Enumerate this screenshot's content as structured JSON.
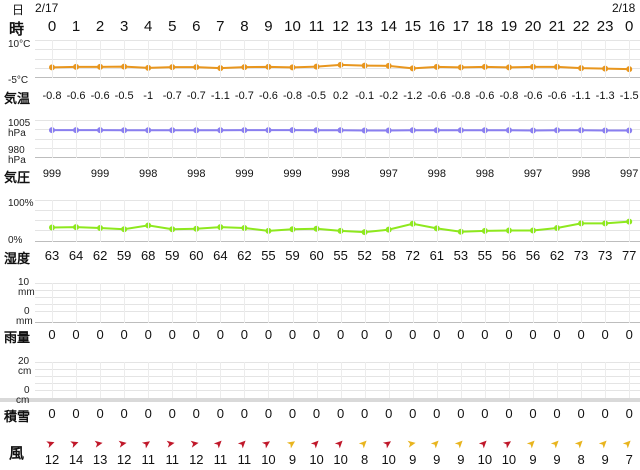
{
  "header": {
    "day_label": "日",
    "time_label": "時",
    "date_start": "2/17",
    "date_end": "2/18"
  },
  "hours": [
    "0",
    "1",
    "2",
    "3",
    "4",
    "5",
    "6",
    "7",
    "8",
    "9",
    "10",
    "11",
    "12",
    "13",
    "14",
    "15",
    "16",
    "17",
    "18",
    "19",
    "20",
    "21",
    "22",
    "23",
    "0"
  ],
  "temperature": {
    "label": "気温",
    "axis_top": "10°C",
    "axis_bottom": "-5°C",
    "color": "#e8961e",
    "values": [
      -0.8,
      -0.6,
      -0.6,
      -0.5,
      -1,
      -0.7,
      -0.7,
      -1.1,
      -0.7,
      -0.6,
      -0.8,
      -0.5,
      0.2,
      -0.1,
      -0.2,
      -1.2,
      -0.6,
      -0.8,
      -0.6,
      -0.8,
      -0.6,
      -0.6,
      -1.1,
      -1.3,
      -1.5
    ],
    "labels": [
      "-0.8",
      "-0.6",
      "-0.6",
      "-0.5",
      "-1",
      "-0.7",
      "-0.7",
      "-1.1",
      "-0.7",
      "-0.6",
      "-0.8",
      "-0.5",
      "0.2",
      "-0.1",
      "-0.2",
      "-1.2",
      "-0.6",
      "-0.8",
      "-0.6",
      "-0.8",
      "-0.6",
      "-0.6",
      "-1.1",
      "-1.3",
      "-1.5"
    ]
  },
  "pressure": {
    "label": "気圧",
    "axis_top": "1005",
    "axis_top_unit": "hPa",
    "axis_bottom": "980",
    "axis_bottom_unit": "hPa",
    "color": "#8a7ff0",
    "values": [
      999,
      999,
      999,
      998,
      998,
      998,
      998,
      998,
      999,
      999,
      999,
      998,
      998,
      997,
      997,
      998,
      998,
      998,
      998,
      998,
      997,
      998,
      998,
      997,
      997
    ],
    "labels": [
      "999",
      "",
      "999",
      "",
      "998",
      "",
      "998",
      "",
      "999",
      "",
      "999",
      "",
      "998",
      "",
      "997",
      "",
      "998",
      "",
      "998",
      "",
      "997",
      "",
      "998",
      "",
      "997"
    ]
  },
  "humidity": {
    "label": "湿度",
    "axis_top": "100%",
    "axis_bottom": "0%",
    "color": "#8ee81e",
    "values": [
      63,
      64,
      62,
      59,
      68,
      59,
      60,
      64,
      62,
      55,
      59,
      60,
      55,
      52,
      58,
      72,
      61,
      53,
      55,
      56,
      56,
      62,
      73,
      73,
      77
    ],
    "labels": [
      "63",
      "64",
      "62",
      "59",
      "68",
      "59",
      "60",
      "64",
      "62",
      "55",
      "59",
      "60",
      "55",
      "52",
      "58",
      "72",
      "61",
      "53",
      "55",
      "56",
      "56",
      "62",
      "73",
      "73",
      "77"
    ]
  },
  "rainfall": {
    "label": "雨量",
    "axis_top": "10",
    "axis_top_unit": "mm",
    "axis_bottom": "0",
    "axis_bottom_unit": "mm",
    "values": [
      "0",
      "0",
      "0",
      "0",
      "0",
      "0",
      "0",
      "0",
      "0",
      "0",
      "0",
      "0",
      "0",
      "0",
      "0",
      "0",
      "0",
      "0",
      "0",
      "0",
      "0",
      "0",
      "0",
      "0",
      "0"
    ]
  },
  "snow": {
    "label": "積雪",
    "axis_top": "20",
    "axis_top_unit": "cm",
    "axis_bottom": "0",
    "axis_bottom_unit": "cm",
    "values": [
      "0",
      "0",
      "0",
      "0",
      "0",
      "0",
      "0",
      "0",
      "0",
      "0",
      "0",
      "0",
      "0",
      "0",
      "0",
      "0",
      "0",
      "0",
      "0",
      "0",
      "0",
      "0",
      "0",
      "0",
      "0"
    ]
  },
  "wind": {
    "label": "風",
    "speeds": [
      "12",
      "14",
      "13",
      "12",
      "11",
      "11",
      "12",
      "11",
      "11",
      "10",
      "9",
      "10",
      "10",
      "8",
      "10",
      "9",
      "9",
      "9",
      "10",
      "10",
      "9",
      "9",
      "8",
      "9",
      "7"
    ],
    "arrow_colors": [
      "#c0182a",
      "#c0182a",
      "#c0182a",
      "#c0182a",
      "#c0182a",
      "#c0182a",
      "#c0182a",
      "#c0182a",
      "#c0182a",
      "#c0182a",
      "#e8b41e",
      "#c0182a",
      "#c0182a",
      "#e8b41e",
      "#c0182a",
      "#e8b41e",
      "#e8b41e",
      "#e8b41e",
      "#c0182a",
      "#c0182a",
      "#e8b41e",
      "#e8b41e",
      "#e8b41e",
      "#e8b41e",
      "#e8b41e"
    ],
    "arrow_rotations": [
      -20,
      -20,
      -10,
      -10,
      -35,
      -10,
      -10,
      -45,
      -45,
      -35,
      -35,
      -45,
      -45,
      -45,
      -35,
      -10,
      -45,
      -45,
      -45,
      -35,
      -45,
      -45,
      -45,
      -45,
      -45
    ]
  }
}
